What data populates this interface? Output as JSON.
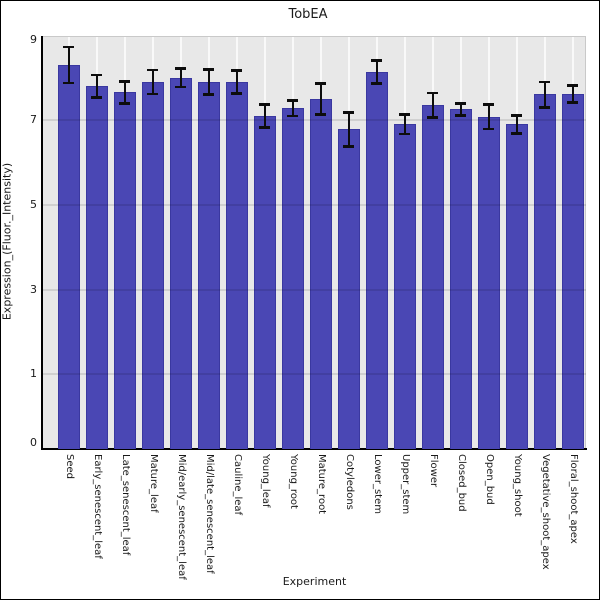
{
  "chart_data": {
    "type": "bar",
    "title": "TobEA",
    "xlabel": "Experiment",
    "ylabel": "Expression_(Fluor._Intensity)",
    "categories": [
      "Seed",
      "Early_senescent_leaf",
      "Late_senescent_leaf",
      "Mature_leaf",
      "Mid/early_senescent_leaf",
      "Mid/late_senescent_leaf",
      "Cauline_leaf",
      "Young_leaf",
      "Young_root",
      "Mature_root",
      "Cotyledons",
      "Lower_stem",
      "Upper_stem",
      "Flower",
      "Closed_bud",
      "Open_bud",
      "Young_shoot",
      "Vegetative_shoot_apex",
      "Floral_shoot_apex"
    ],
    "values": [
      8.3,
      7.8,
      7.65,
      7.9,
      8.0,
      7.9,
      7.9,
      7.1,
      7.28,
      7.5,
      6.78,
      8.14,
      6.9,
      7.35,
      7.25,
      7.08,
      6.9,
      7.6,
      7.62
    ],
    "errors": [
      0.42,
      0.27,
      0.26,
      0.28,
      0.22,
      0.29,
      0.27,
      0.27,
      0.18,
      0.37,
      0.4,
      0.27,
      0.23,
      0.29,
      0.14,
      0.29,
      0.21,
      0.3,
      0.2
    ],
    "yticks": [
      9,
      7,
      5,
      3,
      1,
      0
    ],
    "ylim": [
      0,
      9
    ],
    "grid": true,
    "legend": false,
    "colors": {
      "bar": "#4a47b4",
      "bar_edge": "#3a38a0",
      "error": "#0d0d0d",
      "plot_bg": "#e8e8e8",
      "grid_horizontal": "rgba(0,0,0,0.10)",
      "grid_vertical": "rgba(255,255,255,0.75)",
      "axis": "#000000",
      "frame": "#c9c9c9",
      "text": "#1a1a1a"
    }
  }
}
